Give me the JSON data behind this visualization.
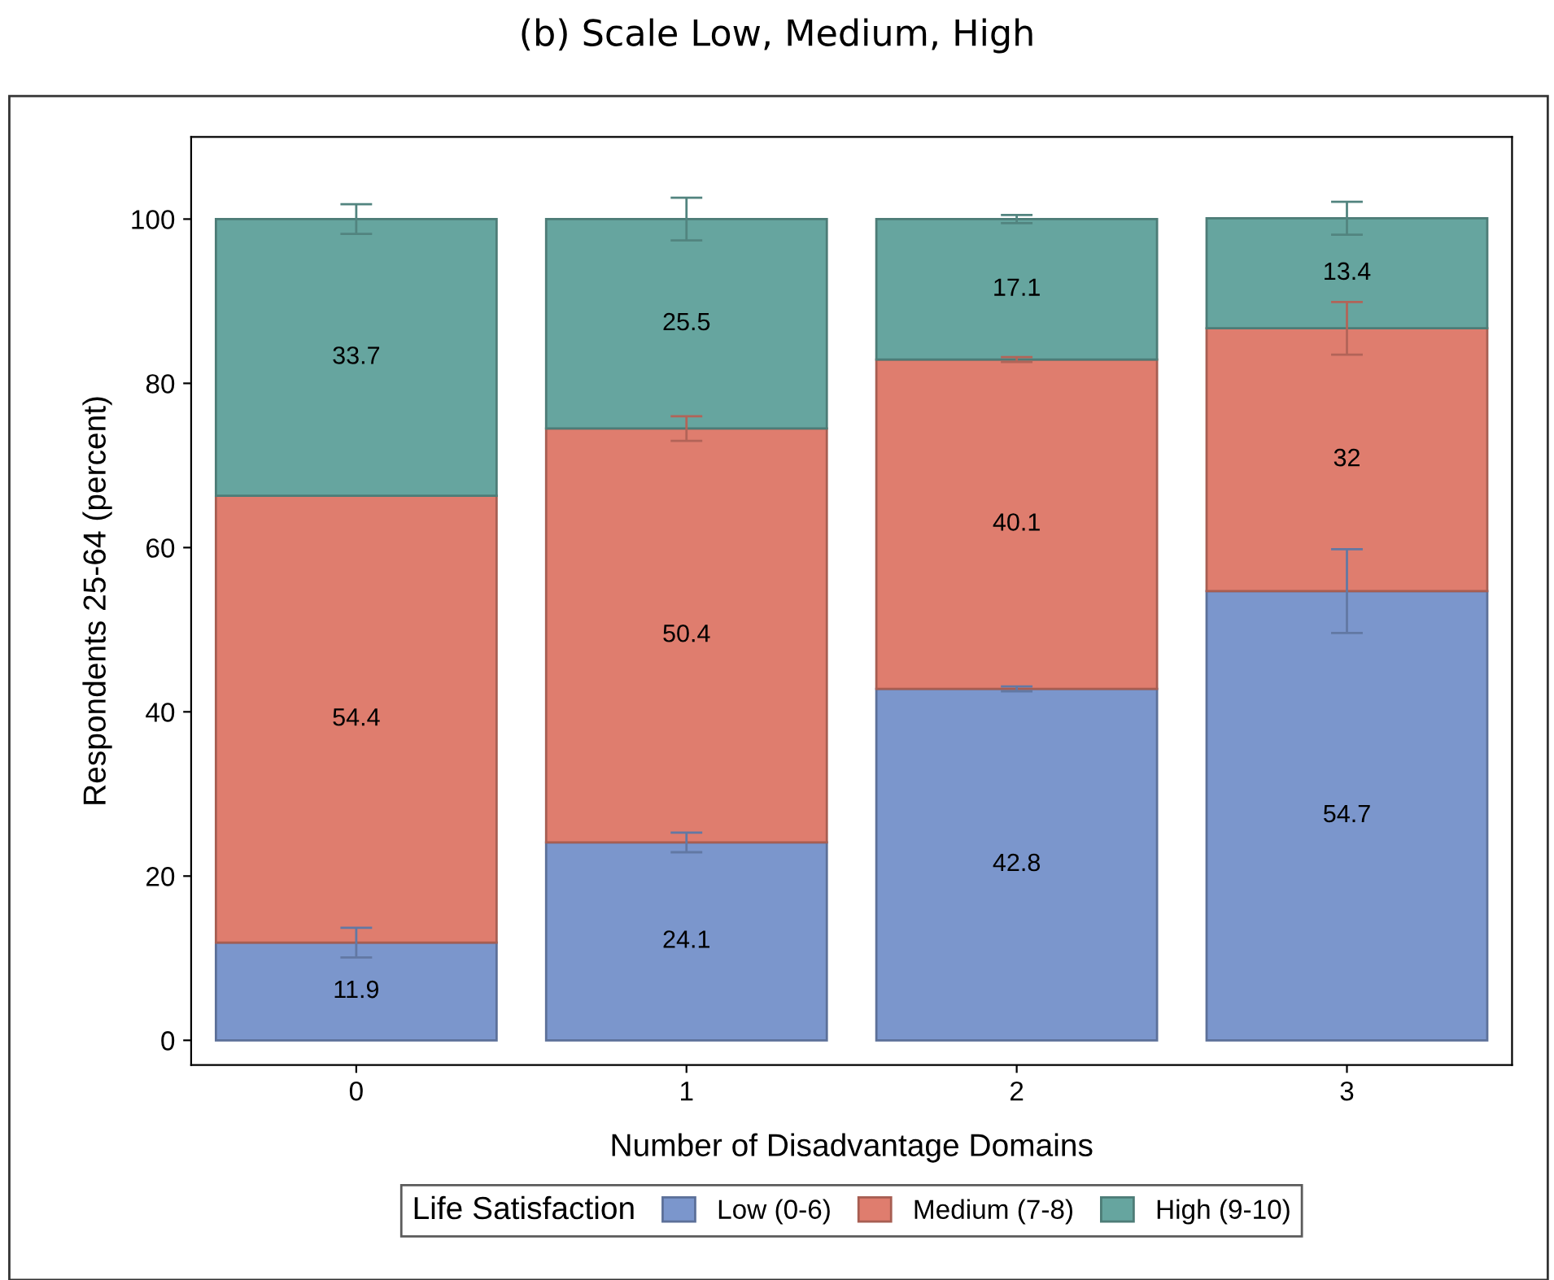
{
  "chart_data": {
    "type": "bar",
    "stacked": true,
    "title": "(b) Scale Low, Medium, High",
    "xlabel": "Number of Disadvantage Domains",
    "ylabel": "Respondents 25-64 (percent)",
    "legend_title": "Life Satisfaction",
    "categories": [
      "0",
      "1",
      "2",
      "3"
    ],
    "series": [
      {
        "name": "Low (0-6)",
        "color": "#7b96cc",
        "values": [
          11.9,
          24.1,
          42.8,
          54.7
        ],
        "errors": [
          1.8,
          1.2,
          0.3,
          5.1
        ]
      },
      {
        "name": "Medium (7-8)",
        "color": "#df7d6e",
        "values": [
          54.4,
          50.4,
          40.1,
          32
        ],
        "errors": [
          null,
          1.5,
          0.3,
          3.2
        ]
      },
      {
        "name": "High (9-10)",
        "color": "#66a59f",
        "values": [
          33.7,
          25.5,
          17.1,
          13.4
        ],
        "errors": [
          1.8,
          2.6,
          0.5,
          2.0
        ]
      }
    ],
    "ylim": [
      -3,
      110
    ],
    "yticks": [
      0,
      20,
      40,
      60,
      80,
      100
    ],
    "data_labels": true,
    "grid": false,
    "legend": "bottom"
  }
}
